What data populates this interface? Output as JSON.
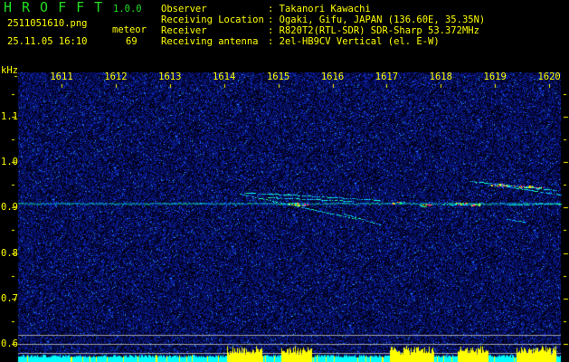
{
  "header": {
    "app_title": "HROFFT",
    "version": "1.0.0",
    "filename": "2511051610.png",
    "datetime": "25.11.05 16:10",
    "type_label": "meteor",
    "count": "69",
    "info": [
      {
        "label": "Observer",
        "value": "Takanori Kawachi"
      },
      {
        "label": "Receiving Location",
        "value": "Ogaki, Gifu, JAPAN (136.60E, 35.35N)"
      },
      {
        "label": "Receiver",
        "value": "R820T2(RTL-SDR) SDR-Sharp 53.372MHz"
      },
      {
        "label": "Receiving antenna",
        "value": "2el-HB9CV Vertical (el. E-W)"
      }
    ]
  },
  "colors": {
    "background": "#000000",
    "text": "#ffff00",
    "title": "#22dd22",
    "noise": "#0a1a8c",
    "signal": "#00ffff",
    "peak": "#ff2080",
    "level_low": "#00ffff",
    "level_high": "#ffff00"
  },
  "chart_data": {
    "type": "heatmap",
    "ylabel": "kHz",
    "x_ticks": [
      "1611",
      "1612",
      "1613",
      "1614",
      "1615",
      "1616",
      "1617",
      "1618",
      "1619",
      "1620"
    ],
    "xlim": [
      1610.2,
      1620.2
    ],
    "y_ticks": [
      "1.1",
      "1.0",
      "0.9",
      "0.8",
      "0.7",
      "0.6"
    ],
    "ylim": [
      0.57,
      1.2
    ],
    "carrier_khz": 0.91,
    "meteor_count": 69
  }
}
